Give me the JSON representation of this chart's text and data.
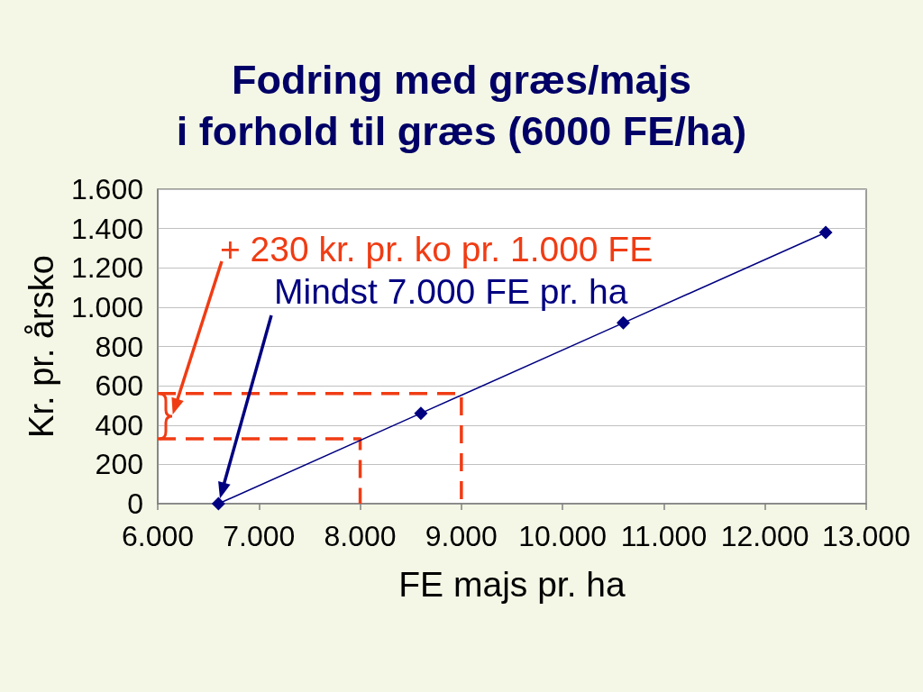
{
  "chart_data": {
    "type": "line",
    "title": "Fodring med græs/majs\ni forhold til græs (6000 FE/ha)",
    "xlabel": "FE majs pr. ha",
    "ylabel": "Kr. pr. årsko",
    "xlim": [
      6000,
      13000
    ],
    "xticks": [
      {
        "value": 6000,
        "label": "6.000"
      },
      {
        "value": 7000,
        "label": "7.000"
      },
      {
        "value": 8000,
        "label": "8.000"
      },
      {
        "value": 9000,
        "label": "9.000"
      },
      {
        "value": 10000,
        "label": "10.000"
      },
      {
        "value": 11000,
        "label": "11.000"
      },
      {
        "value": 12000,
        "label": "12.000"
      },
      {
        "value": 13000,
        "label": "13.000"
      }
    ],
    "ylim": [
      0,
      1600
    ],
    "yticks": [
      0,
      200,
      400,
      600,
      800,
      {
        "value": 1000,
        "label": "1.000"
      },
      {
        "value": 1200,
        "label": "1.200"
      },
      {
        "value": 1400,
        "label": "1.400"
      },
      {
        "value": 1600,
        "label": "1.600"
      }
    ],
    "grid": "y",
    "series": [
      {
        "color": "#000080",
        "x": [
          6600,
          8600,
          10600,
          12600
        ],
        "values": [
          0,
          460,
          920,
          1380
        ],
        "marker": "diamond",
        "line_style": "solid"
      },
      {
        "color": "#f03c14",
        "x": [
          6000,
          8000,
          8000
        ],
        "values": [
          330,
          330,
          0
        ],
        "marker": "none",
        "line_style": "dashed"
      },
      {
        "color": "#f03c14",
        "x": [
          6000,
          9000,
          9000
        ],
        "values": [
          560,
          560,
          0
        ],
        "marker": "none",
        "line_style": "dashed"
      }
    ],
    "annotations": [
      "+ 230 kr. pr. ko pr. 1.000 FE",
      "Mindst 7.000 FE pr. ha"
    ]
  }
}
